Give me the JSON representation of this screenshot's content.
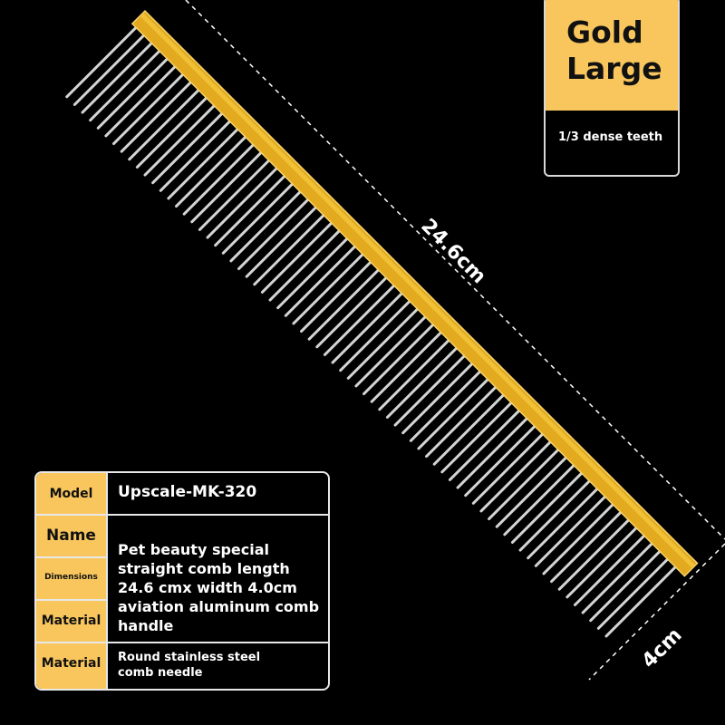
{
  "colors": {
    "accent": "#f8c65c",
    "background": "#000000",
    "handle": "#e0a81c"
  },
  "badge": {
    "title_line1": "Gold",
    "title_line2": "Large",
    "subtitle": "1/3 dense teeth"
  },
  "dimensions": {
    "length": "24.6cm",
    "width": "4cm"
  },
  "spec_table": {
    "rows": [
      {
        "label": "Model",
        "value": "Upscale-MK-320"
      },
      {
        "label": "Name",
        "value": ""
      },
      {
        "label": "Dimensions",
        "value": ""
      },
      {
        "label": "Material",
        "value": ""
      },
      {
        "label": "Material",
        "value": "Round stainless steel comb needle"
      }
    ],
    "merged_value": "Pet beauty special straight comb length 24.6 cmx width 4.0cm aviation aluminum comb handle"
  }
}
